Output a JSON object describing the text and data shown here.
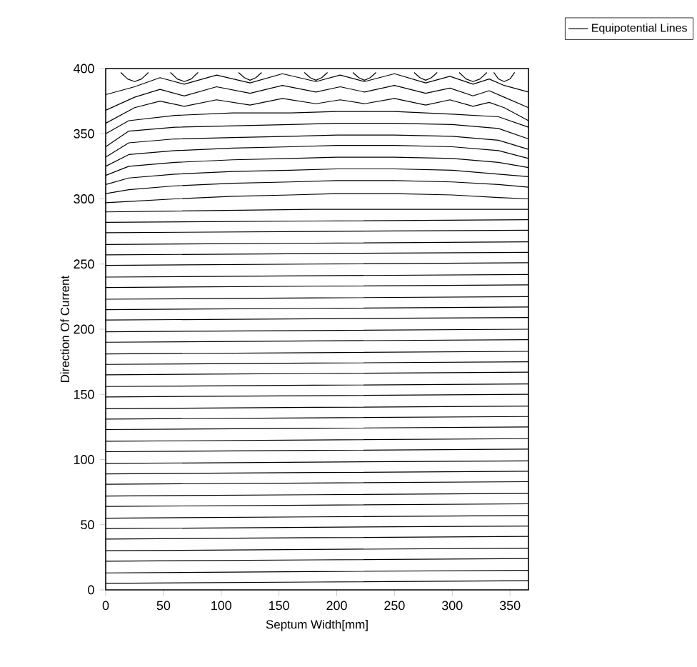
{
  "chart_data": {
    "type": "line",
    "xlabel": "Septum Width[mm]",
    "ylabel": "Direction Of Current",
    "legend": "top right",
    "marker": "none",
    "line_style": "solid",
    "xlim": [
      0,
      366
    ],
    "ylim": [
      0,
      400
    ],
    "xticks": [
      0,
      50,
      100,
      150,
      200,
      250,
      300,
      350
    ],
    "yticks": [
      0,
      50,
      100,
      150,
      200,
      250,
      300,
      350,
      400
    ],
    "x": [
      0,
      180,
      366
    ],
    "series": [
      {
        "name": "Equipotential Lines",
        "color": "#000000",
        "values": [
          5,
          6,
          7
        ]
      },
      {
        "color": "#000000",
        "values": [
          13,
          14,
          15
        ]
      },
      {
        "color": "#000000",
        "values": [
          22,
          23,
          24
        ]
      },
      {
        "color": "#000000",
        "values": [
          30,
          31,
          32
        ]
      },
      {
        "color": "#000000",
        "values": [
          39,
          40,
          41
        ]
      },
      {
        "color": "#000000",
        "values": [
          47,
          48,
          49
        ]
      },
      {
        "color": "#000000",
        "values": [
          55,
          56,
          57
        ]
      },
      {
        "color": "#000000",
        "values": [
          64,
          65,
          66
        ]
      },
      {
        "color": "#000000",
        "values": [
          72,
          73,
          74
        ]
      },
      {
        "color": "#000000",
        "values": [
          81,
          82,
          83
        ]
      },
      {
        "color": "#000000",
        "values": [
          89,
          90,
          91
        ]
      },
      {
        "color": "#000000",
        "values": [
          97,
          98,
          99
        ]
      },
      {
        "color": "#000000",
        "values": [
          106,
          107,
          108
        ]
      },
      {
        "color": "#000000",
        "values": [
          114,
          115,
          116
        ]
      },
      {
        "color": "#000000",
        "values": [
          123,
          124,
          125
        ]
      },
      {
        "color": "#000000",
        "values": [
          131,
          132,
          133
        ]
      },
      {
        "color": "#000000",
        "values": [
          139,
          140,
          141
        ]
      },
      {
        "color": "#000000",
        "values": [
          148,
          149,
          150
        ]
      },
      {
        "color": "#000000",
        "values": [
          156,
          157,
          158
        ]
      },
      {
        "color": "#000000",
        "values": [
          165,
          166,
          167
        ]
      },
      {
        "color": "#000000",
        "values": [
          173,
          174,
          175
        ]
      },
      {
        "color": "#000000",
        "values": [
          181,
          182,
          183
        ]
      },
      {
        "color": "#000000",
        "values": [
          190,
          191,
          192
        ]
      },
      {
        "color": "#000000",
        "values": [
          198,
          199,
          200
        ]
      },
      {
        "color": "#000000",
        "values": [
          207,
          208,
          209
        ]
      },
      {
        "color": "#000000",
        "values": [
          215,
          216,
          217
        ]
      },
      {
        "color": "#000000",
        "values": [
          223,
          224,
          225
        ]
      },
      {
        "color": "#000000",
        "values": [
          232,
          233,
          234
        ]
      },
      {
        "color": "#000000",
        "values": [
          240,
          241,
          242
        ]
      },
      {
        "color": "#000000",
        "values": [
          249,
          250,
          251
        ]
      },
      {
        "color": "#000000",
        "values": [
          257,
          258,
          259
        ]
      },
      {
        "color": "#000000",
        "values": [
          265,
          266,
          267
        ]
      },
      {
        "color": "#000000",
        "values": [
          274,
          275,
          276
        ]
      },
      {
        "color": "#000000",
        "values": [
          282,
          283,
          284
        ]
      },
      {
        "color": "#000000",
        "values": [
          290,
          292,
          292
        ]
      },
      {
        "color": "#000000",
        "x": [
          0,
          20,
          60,
          110,
          160,
          200,
          250,
          300,
          340,
          366
        ],
        "values": [
          297,
          298,
          300,
          302,
          303,
          304,
          304,
          303,
          301,
          300
        ]
      },
      {
        "color": "#000000",
        "x": [
          0,
          20,
          60,
          110,
          160,
          200,
          250,
          300,
          340,
          366
        ],
        "values": [
          304,
          307,
          310,
          312,
          313,
          314,
          314,
          313,
          311,
          309
        ]
      },
      {
        "color": "#000000",
        "x": [
          0,
          20,
          60,
          110,
          160,
          200,
          250,
          300,
          340,
          366
        ],
        "values": [
          311,
          316,
          319,
          321,
          322,
          323,
          323,
          322,
          319,
          317
        ]
      },
      {
        "color": "#000000",
        "x": [
          0,
          20,
          60,
          110,
          160,
          200,
          250,
          300,
          340,
          366
        ],
        "values": [
          318,
          325,
          328,
          330,
          331,
          332,
          332,
          331,
          328,
          324
        ]
      },
      {
        "color": "#000000",
        "x": [
          0,
          20,
          60,
          110,
          160,
          200,
          250,
          300,
          340,
          366
        ],
        "values": [
          325,
          334,
          337,
          339,
          340,
          341,
          341,
          340,
          337,
          331
        ]
      },
      {
        "color": "#000000",
        "x": [
          0,
          20,
          60,
          110,
          160,
          200,
          250,
          300,
          340,
          366
        ],
        "values": [
          332,
          343,
          346,
          347,
          348,
          349,
          349,
          348,
          345,
          338
        ]
      },
      {
        "color": "#000000",
        "x": [
          0,
          20,
          60,
          110,
          160,
          200,
          250,
          300,
          340,
          366
        ],
        "values": [
          340,
          352,
          355,
          356,
          357,
          358,
          358,
          357,
          354,
          346
        ]
      },
      {
        "color": "#000000",
        "x": [
          0,
          20,
          60,
          110,
          160,
          200,
          250,
          300,
          340,
          366
        ],
        "values": [
          350,
          360,
          364,
          366,
          366,
          367,
          367,
          365,
          363,
          355
        ]
      },
      {
        "color": "#000000",
        "x": [
          0,
          25,
          47,
          68,
          96,
          125,
          153,
          182,
          203,
          224,
          250,
          277,
          298,
          318,
          332,
          345,
          366
        ],
        "values": [
          358,
          370,
          375,
          371,
          376,
          372,
          377,
          373,
          376,
          373,
          377,
          372,
          376,
          371,
          374,
          370,
          360
        ]
      },
      {
        "color": "#000000",
        "x": [
          0,
          25,
          47,
          68,
          96,
          125,
          153,
          182,
          203,
          224,
          250,
          277,
          298,
          318,
          332,
          345,
          366
        ],
        "values": [
          368,
          378,
          384,
          379,
          386,
          381,
          387,
          382,
          386,
          382,
          387,
          381,
          385,
          379,
          383,
          378,
          370
        ]
      },
      {
        "color": "#000000",
        "x": [
          0,
          25,
          47,
          68,
          96,
          125,
          153,
          182,
          203,
          224,
          250,
          277,
          298,
          318,
          332,
          345,
          366
        ],
        "values": [
          380,
          386,
          393,
          388,
          395,
          389,
          396,
          390,
          395,
          390,
          396,
          389,
          394,
          388,
          392,
          387,
          382
        ]
      },
      {
        "color": "#000000",
        "x": [
          13,
          19,
          25,
          31,
          37
        ],
        "values": [
          397,
          392,
          390,
          392,
          397
        ]
      },
      {
        "color": "#000000",
        "x": [
          56,
          62,
          68,
          74,
          80
        ],
        "values": [
          397,
          392,
          390,
          392,
          397
        ]
      },
      {
        "color": "#000000",
        "x": [
          115,
          120,
          125,
          130,
          135
        ],
        "values": [
          397,
          393,
          391,
          393,
          397
        ]
      },
      {
        "color": "#000000",
        "x": [
          172,
          177,
          182,
          187,
          192
        ],
        "values": [
          397,
          393,
          391,
          393,
          397
        ]
      },
      {
        "color": "#000000",
        "x": [
          214,
          219,
          224,
          229,
          234
        ],
        "values": [
          397,
          393,
          391,
          393,
          397
        ]
      },
      {
        "color": "#000000",
        "x": [
          267,
          272,
          277,
          282,
          287
        ],
        "values": [
          397,
          393,
          391,
          393,
          397
        ]
      },
      {
        "color": "#000000",
        "x": [
          306,
          312,
          318,
          324,
          330
        ],
        "values": [
          397,
          392,
          390,
          392,
          397
        ]
      },
      {
        "color": "#000000",
        "x": [
          336,
          340,
          345,
          350,
          354
        ],
        "values": [
          397,
          392,
          390,
          392,
          397
        ]
      }
    ]
  }
}
